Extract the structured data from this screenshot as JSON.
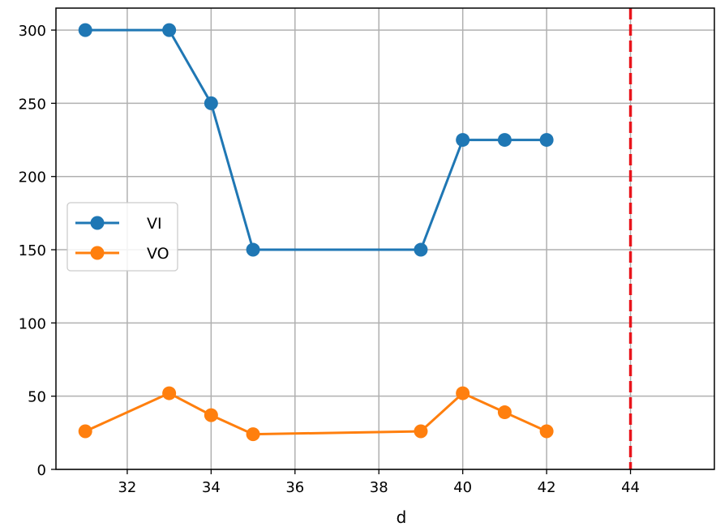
{
  "chart_data": {
    "type": "line",
    "xlabel": "d",
    "ylabel": "",
    "xlim": [
      30.3,
      46.0
    ],
    "ylim": [
      0,
      315
    ],
    "x_ticks": [
      32,
      34,
      36,
      38,
      40,
      42,
      44
    ],
    "y_ticks": [
      0,
      50,
      100,
      150,
      200,
      250,
      300
    ],
    "grid": true,
    "legend_position": "center-left",
    "vertical_line": {
      "x": 44,
      "style": "dashed",
      "color": "#e8141b"
    },
    "series": [
      {
        "name": "VI",
        "color": "#1f77b4",
        "x": [
          31,
          33,
          34,
          35,
          39,
          40,
          41,
          42
        ],
        "y": [
          300,
          300,
          250,
          150,
          150,
          225,
          225,
          225
        ]
      },
      {
        "name": "VO",
        "color": "#ff7f0e",
        "x": [
          31,
          33,
          34,
          35,
          39,
          40,
          41,
          42
        ],
        "y": [
          26,
          52,
          37,
          24,
          26,
          52,
          39,
          26
        ]
      }
    ]
  }
}
